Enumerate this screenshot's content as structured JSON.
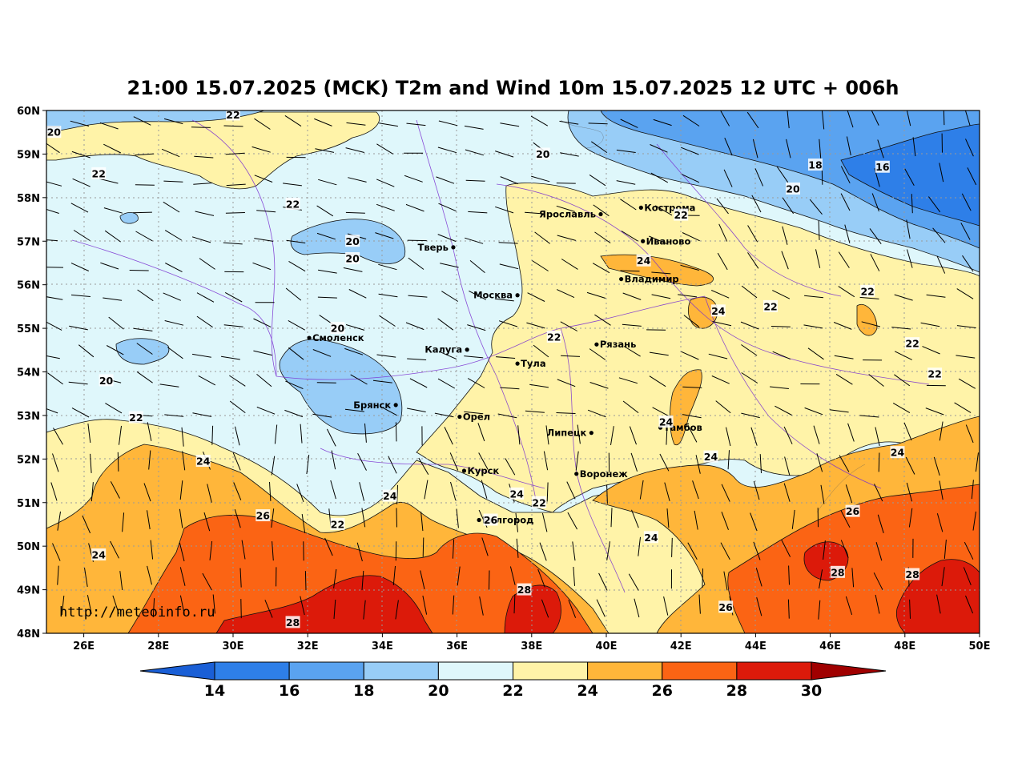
{
  "title": "21:00 15.07.2025 (MCK) T2m and Wind 10m 15.07.2025 12 UTC + 006h",
  "watermark": "http://meteoinfo.ru",
  "axes": {
    "lat_labels": [
      "60N",
      "59N",
      "58N",
      "57N",
      "56N",
      "55N",
      "54N",
      "53N",
      "52N",
      "51N",
      "50N",
      "49N",
      "48N"
    ],
    "lon_labels": [
      "26E",
      "28E",
      "30E",
      "32E",
      "34E",
      "36E",
      "38E",
      "40E",
      "42E",
      "44E",
      "46E",
      "48E",
      "50E"
    ]
  },
  "colorbar": {
    "labels": [
      "14",
      "16",
      "18",
      "20",
      "22",
      "24",
      "26",
      "28",
      "30"
    ],
    "colors": {
      "below": "#1a5fd6",
      "bins": [
        "#2e7fe8",
        "#5aa3f0",
        "#98cdf7",
        "#dff7fb",
        "#fff3a8",
        "#ffb63a",
        "#fb6414",
        "#dc1a0a"
      ],
      "above": "#a00000"
    }
  },
  "legend_colors": {
    "c18": "#5aa3f0",
    "c20": "#98cdf7",
    "c22": "#dff7fb",
    "c24": "#fff3a8",
    "c26": "#ffb63a",
    "c28": "#fb6414",
    "c30": "#dc1a0a"
  },
  "cities": [
    {
      "name": "Ярославль",
      "lon": 39.85,
      "lat": 57.62
    },
    {
      "name": "Кострома",
      "lon": 40.93,
      "lat": 57.77
    },
    {
      "name": "Иваново",
      "lon": 40.98,
      "lat": 57.0
    },
    {
      "name": "Тверь",
      "lon": 35.9,
      "lat": 56.86
    },
    {
      "name": "Владимир",
      "lon": 40.4,
      "lat": 56.13
    },
    {
      "name": "Москва",
      "lon": 37.62,
      "lat": 55.76
    },
    {
      "name": "Смоленск",
      "lon": 32.04,
      "lat": 54.78
    },
    {
      "name": "Калуга",
      "lon": 36.27,
      "lat": 54.51
    },
    {
      "name": "Рязань",
      "lon": 39.74,
      "lat": 54.63
    },
    {
      "name": "Тула",
      "lon": 37.62,
      "lat": 54.19
    },
    {
      "name": "Брянск",
      "lon": 34.36,
      "lat": 53.24
    },
    {
      "name": "Орел",
      "lon": 36.07,
      "lat": 52.97
    },
    {
      "name": "Липецк",
      "lon": 39.6,
      "lat": 52.6
    },
    {
      "name": "Тамбов",
      "lon": 41.45,
      "lat": 52.72
    },
    {
      "name": "Курск",
      "lon": 36.19,
      "lat": 51.73
    },
    {
      "name": "Воронеж",
      "lon": 39.2,
      "lat": 51.66
    },
    {
      "name": "Белгород",
      "lon": 36.59,
      "lat": 50.6
    }
  ],
  "contour_labels": [
    {
      "text": "20",
      "lon": 25.2,
      "lat": 59.5
    },
    {
      "text": "22",
      "lon": 30.0,
      "lat": 59.9
    },
    {
      "text": "22",
      "lon": 26.4,
      "lat": 58.55
    },
    {
      "text": "22",
      "lon": 31.6,
      "lat": 57.85
    },
    {
      "text": "20",
      "lon": 38.3,
      "lat": 59.0
    },
    {
      "text": "18",
      "lon": 45.6,
      "lat": 58.75
    },
    {
      "text": "16",
      "lon": 47.4,
      "lat": 58.7
    },
    {
      "text": "20",
      "lon": 45.0,
      "lat": 58.2
    },
    {
      "text": "22",
      "lon": 42.0,
      "lat": 57.6
    },
    {
      "text": "20",
      "lon": 33.2,
      "lat": 57.0
    },
    {
      "text": "20",
      "lon": 33.2,
      "lat": 56.6
    },
    {
      "text": "24",
      "lon": 41.0,
      "lat": 56.55
    },
    {
      "text": "24",
      "lon": 43.0,
      "lat": 55.4
    },
    {
      "text": "22",
      "lon": 44.4,
      "lat": 55.5
    },
    {
      "text": "22",
      "lon": 47.0,
      "lat": 55.85
    },
    {
      "text": "20",
      "lon": 32.8,
      "lat": 55.0
    },
    {
      "text": "22",
      "lon": 38.6,
      "lat": 54.8
    },
    {
      "text": "22",
      "lon": 48.2,
      "lat": 54.65
    },
    {
      "text": "22",
      "lon": 48.8,
      "lat": 53.95
    },
    {
      "text": "20",
      "lon": 26.6,
      "lat": 53.8
    },
    {
      "text": "22",
      "lon": 27.4,
      "lat": 52.95
    },
    {
      "text": "24",
      "lon": 41.6,
      "lat": 52.85
    },
    {
      "text": "24",
      "lon": 29.2,
      "lat": 51.95
    },
    {
      "text": "24",
      "lon": 42.8,
      "lat": 52.05
    },
    {
      "text": "24",
      "lon": 47.8,
      "lat": 52.15
    },
    {
      "text": "24",
      "lon": 34.2,
      "lat": 51.15
    },
    {
      "text": "24",
      "lon": 37.6,
      "lat": 51.2
    },
    {
      "text": "22",
      "lon": 38.2,
      "lat": 51.0
    },
    {
      "text": "26",
      "lon": 30.8,
      "lat": 50.7
    },
    {
      "text": "22",
      "lon": 32.8,
      "lat": 50.5
    },
    {
      "text": "26",
      "lon": 36.9,
      "lat": 50.6
    },
    {
      "text": "26",
      "lon": 46.6,
      "lat": 50.8
    },
    {
      "text": "24",
      "lon": 41.2,
      "lat": 50.2
    },
    {
      "text": "24",
      "lon": 26.4,
      "lat": 49.8
    },
    {
      "text": "28",
      "lon": 46.2,
      "lat": 49.4
    },
    {
      "text": "28",
      "lon": 48.2,
      "lat": 49.35
    },
    {
      "text": "28",
      "lon": 37.8,
      "lat": 49.0
    },
    {
      "text": "26",
      "lon": 43.2,
      "lat": 48.6
    },
    {
      "text": "28",
      "lon": 31.6,
      "lat": 48.25
    }
  ]
}
